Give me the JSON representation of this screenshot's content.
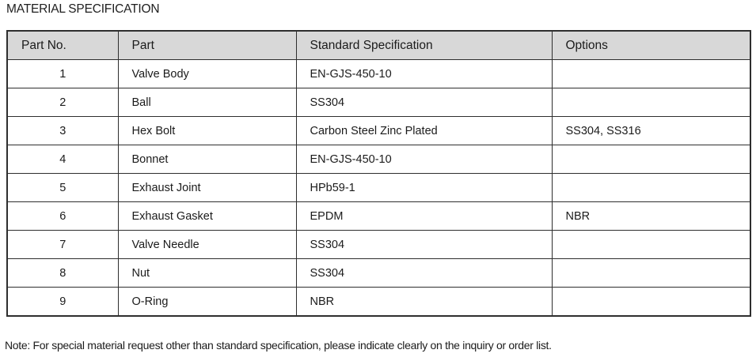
{
  "page": {
    "title": "MATERIAL SPECIFICATION",
    "note": "Note: For special material request other than standard specification, please indicate clearly on the inquiry or order list."
  },
  "table": {
    "columns": [
      "Part No.",
      "Part",
      "Standard Specification",
      "Options"
    ],
    "rows": [
      {
        "part_no": "1",
        "part": "Valve Body",
        "standard_spec": "EN-GJS-450-10",
        "options": ""
      },
      {
        "part_no": "2",
        "part": "Ball",
        "standard_spec": "SS304",
        "options": ""
      },
      {
        "part_no": "3",
        "part": "Hex Bolt",
        "standard_spec": "Carbon Steel Zinc Plated",
        "options": "SS304, SS316"
      },
      {
        "part_no": "4",
        "part": "Bonnet",
        "standard_spec": "EN-GJS-450-10",
        "options": ""
      },
      {
        "part_no": "5",
        "part": "Exhaust Joint",
        "standard_spec": "HPb59-1",
        "options": ""
      },
      {
        "part_no": "6",
        "part": "Exhaust Gasket",
        "standard_spec": "EPDM",
        "options": "NBR"
      },
      {
        "part_no": "7",
        "part": "Valve Needle",
        "standard_spec": "SS304",
        "options": ""
      },
      {
        "part_no": "8",
        "part": "Nut",
        "standard_spec": "SS304",
        "options": ""
      },
      {
        "part_no": "9",
        "part": "O-Ring",
        "standard_spec": "NBR",
        "options": ""
      }
    ],
    "colors": {
      "header_bg": "#d8d8d8",
      "border": "#2e2e2e",
      "text": "#1b1b1b"
    }
  }
}
